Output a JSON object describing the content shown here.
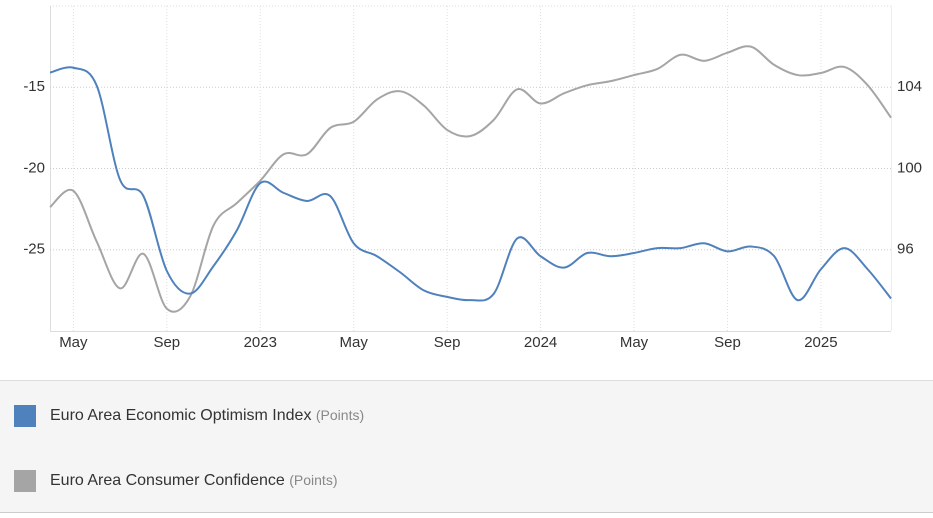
{
  "chart_data": {
    "type": "line",
    "categories": [
      null,
      "May",
      null,
      null,
      null,
      "Sep",
      null,
      null,
      null,
      "2023",
      null,
      null,
      null,
      "May",
      null,
      null,
      null,
      "Sep",
      null,
      null,
      null,
      "2024",
      null,
      null,
      null,
      "May",
      null,
      null,
      null,
      "Sep",
      null,
      null,
      null,
      "2025",
      null,
      null,
      null
    ],
    "series": [
      {
        "name": "Euro Area Economic Optimism Index",
        "unit": "(Points)",
        "color": "#4f81bd",
        "axis": "y",
        "values": [
          -14.1,
          -13.8,
          -14.9,
          -20.7,
          -21.7,
          -26.3,
          -27.7,
          -26.0,
          -23.8,
          -20.9,
          -21.5,
          -22.0,
          -21.7,
          -24.6,
          -25.4,
          -26.4,
          -27.5,
          -27.9,
          -28.1,
          -27.7,
          -24.3,
          -25.4,
          -26.1,
          -25.2,
          -25.4,
          -25.2,
          -24.9,
          -24.9,
          -24.6,
          -25.1,
          -24.8,
          -25.4,
          -28.1,
          -26.2,
          -24.9,
          -26.2,
          -28.0
        ]
      },
      {
        "name": "Euro Area Consumer Confidence",
        "unit": "(Points)",
        "color": "#a5a5a5",
        "axis": "y2",
        "values": [
          98.1,
          98.9,
          96.4,
          94.1,
          95.8,
          93.1,
          93.7,
          97.2,
          98.3,
          99.4,
          100.7,
          100.7,
          102.0,
          102.3,
          103.4,
          103.8,
          103.1,
          101.9,
          101.6,
          102.4,
          103.9,
          103.2,
          103.7,
          104.1,
          104.3,
          104.6,
          104.9,
          105.6,
          105.3,
          105.7,
          106.0,
          105.1,
          104.6,
          104.7,
          105.0,
          104.1,
          102.5
        ]
      }
    ],
    "ylim": [
      -30,
      -10
    ],
    "yticks": [
      -25,
      -20,
      -15
    ],
    "y2lim": [
      92,
      108
    ],
    "y2ticks": [
      96,
      100,
      104
    ],
    "grid": true,
    "smooth": true
  }
}
